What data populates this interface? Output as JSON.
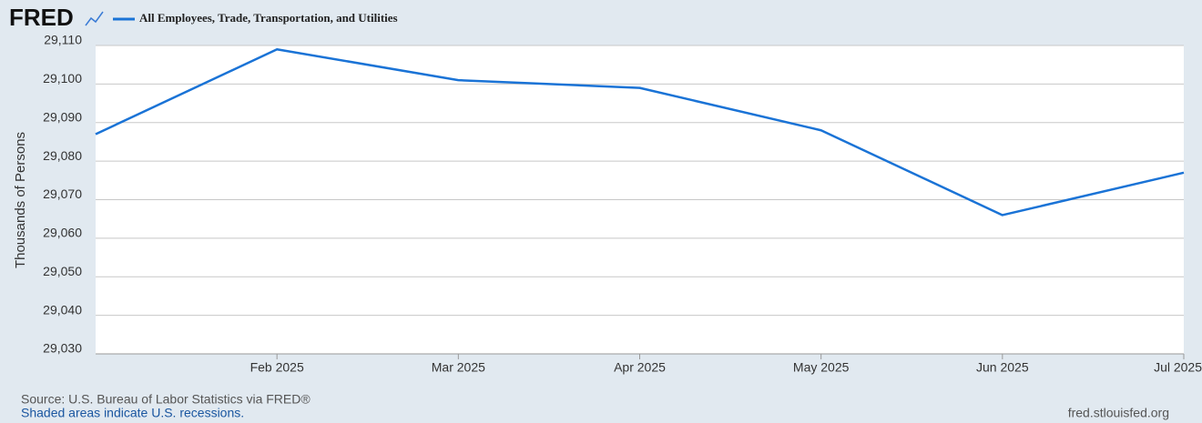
{
  "chart_data": {
    "type": "line",
    "logo": "FRED",
    "y_label": "Thousands of Persons",
    "categories": [
      null,
      "Feb 2025",
      "Mar 2025",
      "Apr 2025",
      "May 2025",
      "Jun 2025",
      "Jul 2025"
    ],
    "series": [
      {
        "name": "All Employees, Trade, Transportation, and Utilities",
        "color": "#1a73d6",
        "values": [
          29087,
          29109,
          29101,
          29099,
          29088,
          29066,
          29077
        ]
      }
    ],
    "ylim": [
      29030,
      29110
    ],
    "yticks": [
      {
        "value": 29030,
        "label": "29,030"
      },
      {
        "value": 29040,
        "label": "29,040"
      },
      {
        "value": 29050,
        "label": "29,050"
      },
      {
        "value": 29060,
        "label": "29,060"
      },
      {
        "value": 29070,
        "label": "29,070"
      },
      {
        "value": 29080,
        "label": "29,080"
      },
      {
        "value": 29090,
        "label": "29,090"
      },
      {
        "value": 29100,
        "label": "29,100"
      },
      {
        "value": 29110,
        "label": "29,110"
      }
    ],
    "grid": true,
    "source": "Source: U.S. Bureau of Labor Statistics via FRED®",
    "note": "Shaded areas indicate U.S. recessions.",
    "url": "fred.stlouisfed.org"
  }
}
